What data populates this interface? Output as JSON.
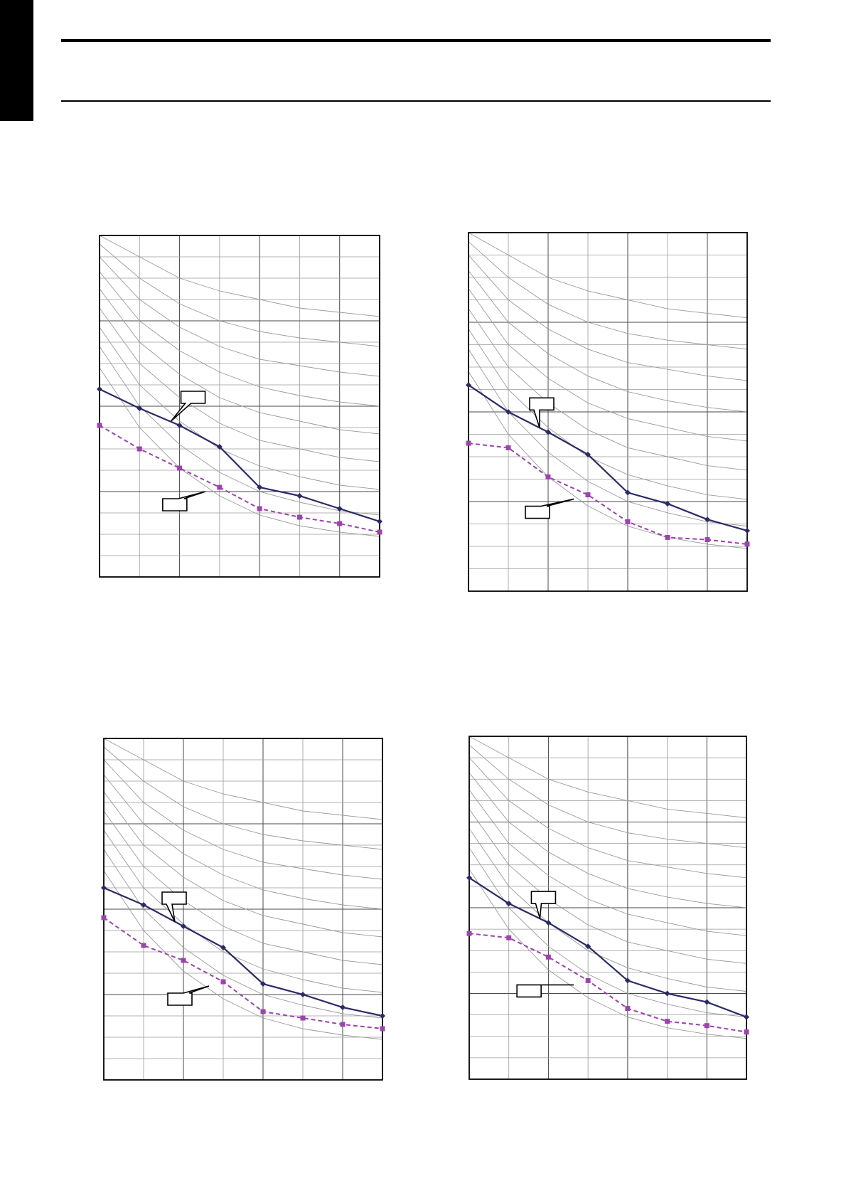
{
  "colors": {
    "series_solid": "#2b2b66",
    "series_dashed": "#9b44ad",
    "grid": "#9a9a9a",
    "frame": "#000000"
  },
  "chart_data": [
    {
      "type": "line",
      "title": "",
      "xlabel": "",
      "ylabel": "",
      "x": [
        0,
        1,
        2,
        3,
        4,
        5,
        6,
        7
      ],
      "xlim": [
        0,
        7
      ],
      "ylim": [
        0,
        16
      ],
      "grid": true,
      "series": [
        {
          "style": "solid-diamond",
          "values": [
            8.8,
            7.9,
            7.1,
            6.1,
            4.2,
            3.8,
            3.2,
            2.6
          ]
        },
        {
          "style": "dashed-square",
          "values": [
            7.1,
            6.0,
            5.1,
            4.2,
            3.2,
            2.8,
            2.5,
            2.1
          ]
        }
      ],
      "reference_curves": [
        [
          16.0,
          15.0,
          14.0,
          13.4,
          13.0,
          12.6,
          12.4,
          12.2
        ],
        [
          15.6,
          14.0,
          12.8,
          12.0,
          11.5,
          11.2,
          11.0,
          10.8
        ],
        [
          15.0,
          13.0,
          11.7,
          10.8,
          10.2,
          9.9,
          9.6,
          9.4
        ],
        [
          14.3,
          12.0,
          10.6,
          9.6,
          8.9,
          8.5,
          8.2,
          8.0
        ],
        [
          13.5,
          11.0,
          9.5,
          8.4,
          7.7,
          7.3,
          6.9,
          6.7
        ],
        [
          12.6,
          10.0,
          8.4,
          7.2,
          6.4,
          6.0,
          5.6,
          5.4
        ],
        [
          11.7,
          9.0,
          7.3,
          6.0,
          5.2,
          4.7,
          4.3,
          4.1
        ],
        [
          10.8,
          8.0,
          6.2,
          4.9,
          4.0,
          3.5,
          3.1,
          2.9
        ],
        [
          9.8,
          7.0,
          5.1,
          3.8,
          2.9,
          2.4,
          2.1,
          1.9
        ]
      ],
      "callouts": [
        "",
        ""
      ]
    },
    {
      "type": "line",
      "title": "",
      "xlabel": "",
      "ylabel": "",
      "x": [
        0,
        1,
        2,
        3,
        4,
        5,
        6,
        7
      ],
      "xlim": [
        0,
        7
      ],
      "ylim": [
        0,
        16
      ],
      "grid": true,
      "series": [
        {
          "style": "solid-diamond",
          "values": [
            9.2,
            8.0,
            7.1,
            6.1,
            4.4,
            3.9,
            3.2,
            2.7
          ]
        },
        {
          "style": "dashed-square",
          "values": [
            6.6,
            6.4,
            5.1,
            4.3,
            3.1,
            2.4,
            2.3,
            2.1
          ]
        }
      ],
      "reference_curves": [
        [
          16.0,
          15.0,
          14.0,
          13.4,
          13.0,
          12.6,
          12.4,
          12.2
        ],
        [
          15.6,
          14.0,
          12.8,
          12.0,
          11.5,
          11.2,
          11.0,
          10.8
        ],
        [
          15.0,
          13.0,
          11.7,
          10.8,
          10.2,
          9.9,
          9.6,
          9.4
        ],
        [
          14.3,
          12.0,
          10.6,
          9.6,
          8.9,
          8.5,
          8.2,
          8.0
        ],
        [
          13.5,
          11.0,
          9.5,
          8.4,
          7.7,
          7.3,
          6.9,
          6.7
        ],
        [
          12.6,
          10.0,
          8.4,
          7.2,
          6.4,
          6.0,
          5.6,
          5.4
        ],
        [
          11.7,
          9.0,
          7.3,
          6.0,
          5.2,
          4.7,
          4.3,
          4.1
        ],
        [
          10.8,
          8.0,
          6.2,
          4.9,
          4.0,
          3.5,
          3.1,
          2.9
        ],
        [
          9.8,
          7.0,
          5.1,
          3.8,
          2.9,
          2.4,
          2.1,
          1.9
        ]
      ],
      "callouts": [
        "",
        ""
      ]
    },
    {
      "type": "line",
      "title": "",
      "xlabel": "",
      "ylabel": "",
      "x": [
        0,
        1,
        2,
        3,
        4,
        5,
        6,
        7
      ],
      "xlim": [
        0,
        7
      ],
      "ylim": [
        0,
        16
      ],
      "grid": true,
      "series": [
        {
          "style": "solid-diamond",
          "values": [
            9.0,
            8.2,
            7.2,
            6.2,
            4.5,
            4.0,
            3.4,
            3.0
          ]
        },
        {
          "style": "dashed-square",
          "values": [
            7.6,
            6.3,
            5.6,
            4.6,
            3.2,
            2.9,
            2.6,
            2.4
          ]
        }
      ],
      "reference_curves": [
        [
          16.0,
          15.0,
          14.0,
          13.4,
          13.0,
          12.6,
          12.4,
          12.2
        ],
        [
          15.6,
          14.0,
          12.8,
          12.0,
          11.5,
          11.2,
          11.0,
          10.8
        ],
        [
          15.0,
          13.0,
          11.7,
          10.8,
          10.2,
          9.9,
          9.6,
          9.4
        ],
        [
          14.3,
          12.0,
          10.6,
          9.6,
          8.9,
          8.5,
          8.2,
          8.0
        ],
        [
          13.5,
          11.0,
          9.5,
          8.4,
          7.7,
          7.3,
          6.9,
          6.7
        ],
        [
          12.6,
          10.0,
          8.4,
          7.2,
          6.4,
          6.0,
          5.6,
          5.4
        ],
        [
          11.7,
          9.0,
          7.3,
          6.0,
          5.2,
          4.7,
          4.3,
          4.1
        ],
        [
          10.8,
          8.0,
          6.2,
          4.9,
          4.0,
          3.5,
          3.1,
          2.9
        ],
        [
          9.8,
          7.0,
          5.1,
          3.8,
          2.9,
          2.4,
          2.1,
          1.9
        ]
      ],
      "callouts": [
        "",
        ""
      ]
    },
    {
      "type": "line",
      "title": "",
      "xlabel": "",
      "ylabel": "",
      "x": [
        0,
        1,
        2,
        3,
        4,
        5,
        6,
        7
      ],
      "xlim": [
        0,
        7
      ],
      "ylim": [
        0,
        16
      ],
      "grid": true,
      "series": [
        {
          "style": "solid-diamond",
          "values": [
            9.4,
            8.2,
            7.3,
            6.2,
            4.6,
            4.0,
            3.6,
            2.9
          ]
        },
        {
          "style": "dashed-square",
          "values": [
            6.8,
            6.6,
            5.7,
            4.6,
            3.3,
            2.7,
            2.5,
            2.2
          ]
        }
      ],
      "reference_curves": [
        [
          16.0,
          15.0,
          14.0,
          13.4,
          13.0,
          12.6,
          12.4,
          12.2
        ],
        [
          15.6,
          14.0,
          12.8,
          12.0,
          11.5,
          11.2,
          11.0,
          10.8
        ],
        [
          15.0,
          13.0,
          11.7,
          10.8,
          10.2,
          9.9,
          9.6,
          9.4
        ],
        [
          14.3,
          12.0,
          10.6,
          9.6,
          8.9,
          8.5,
          8.2,
          8.0
        ],
        [
          13.5,
          11.0,
          9.5,
          8.4,
          7.7,
          7.3,
          6.9,
          6.7
        ],
        [
          12.6,
          10.0,
          8.4,
          7.2,
          6.4,
          6.0,
          5.6,
          5.4
        ],
        [
          11.7,
          9.0,
          7.3,
          6.0,
          5.2,
          4.7,
          4.3,
          4.1
        ],
        [
          10.8,
          8.0,
          6.2,
          4.9,
          4.0,
          3.5,
          3.1,
          2.9
        ],
        [
          9.8,
          7.0,
          5.1,
          3.8,
          2.9,
          2.4,
          2.1,
          1.9
        ]
      ],
      "callouts": [
        "",
        ""
      ]
    }
  ]
}
